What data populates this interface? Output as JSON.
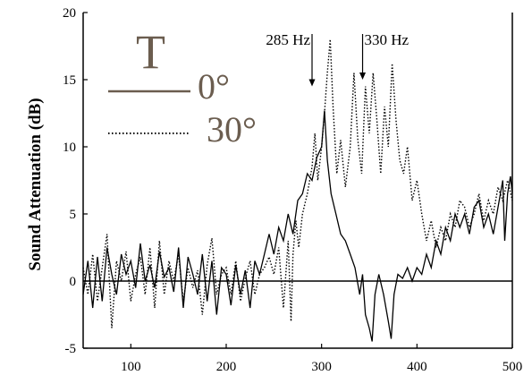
{
  "chart_data": {
    "type": "line",
    "title": "",
    "xlabel": "",
    "ylabel": "Sound Attenuation (dB)",
    "xlim": [
      50,
      500
    ],
    "ylim": [
      -5,
      20
    ],
    "x_ticks": [
      100,
      200,
      300,
      400,
      500
    ],
    "y_ticks": [
      -5,
      0,
      5,
      10,
      15,
      20
    ],
    "x_tick_labels": [
      "100",
      "200",
      "300",
      "400",
      "500"
    ],
    "y_tick_labels": [
      "-5",
      "0",
      "5",
      "10",
      "15",
      "20"
    ],
    "grid": false,
    "zero_line": true,
    "legend": {
      "title": "T",
      "placement": "top-left",
      "entries": [
        {
          "label": "0°",
          "style": "solid",
          "color": "#6b5d4f"
        },
        {
          "label": "30°",
          "style": "dotted",
          "color": "#000000"
        }
      ]
    },
    "annotations": [
      {
        "text": "285 Hz",
        "x": 290,
        "arrow_to_y": 14.5
      },
      {
        "text": "330 Hz",
        "x": 343,
        "arrow_to_y": 15.0
      }
    ],
    "series": [
      {
        "name": "0°",
        "style": "solid",
        "color": "#000000",
        "points": [
          [
            50,
            -1
          ],
          [
            55,
            1.5
          ],
          [
            60,
            -2
          ],
          [
            65,
            1.8
          ],
          [
            70,
            -1.5
          ],
          [
            75,
            2.5
          ],
          [
            80,
            0.5
          ],
          [
            85,
            -1
          ],
          [
            90,
            2
          ],
          [
            95,
            0.5
          ],
          [
            100,
            1.5
          ],
          [
            105,
            -0.5
          ],
          [
            110,
            2.8
          ],
          [
            115,
            0
          ],
          [
            120,
            1.2
          ],
          [
            125,
            -0.5
          ],
          [
            130,
            2.2
          ],
          [
            135,
            0.3
          ],
          [
            140,
            1
          ],
          [
            145,
            -0.8
          ],
          [
            150,
            2.5
          ],
          [
            155,
            -2
          ],
          [
            160,
            1.8
          ],
          [
            165,
            0.5
          ],
          [
            170,
            -1
          ],
          [
            175,
            2
          ],
          [
            180,
            -1.5
          ],
          [
            185,
            1.5
          ],
          [
            190,
            -2.5
          ],
          [
            195,
            1
          ],
          [
            200,
            0.5
          ],
          [
            205,
            -1.8
          ],
          [
            210,
            1.2
          ],
          [
            215,
            -1
          ],
          [
            220,
            0.8
          ],
          [
            225,
            -2
          ],
          [
            230,
            1.5
          ],
          [
            235,
            0.5
          ],
          [
            240,
            2
          ],
          [
            245,
            3.5
          ],
          [
            250,
            2
          ],
          [
            255,
            4
          ],
          [
            260,
            3
          ],
          [
            265,
            5
          ],
          [
            270,
            3.5
          ],
          [
            275,
            6
          ],
          [
            280,
            6.5
          ],
          [
            285,
            8
          ],
          [
            290,
            7.5
          ],
          [
            295,
            9.2
          ],
          [
            300,
            10
          ],
          [
            303,
            12.7
          ],
          [
            306,
            9
          ],
          [
            310,
            6.5
          ],
          [
            315,
            5
          ],
          [
            320,
            3.5
          ],
          [
            325,
            3
          ],
          [
            330,
            2
          ],
          [
            335,
            1
          ],
          [
            340,
            -1
          ],
          [
            343,
            0.5
          ],
          [
            346,
            -2.5
          ],
          [
            350,
            -3.5
          ],
          [
            353,
            -4.5
          ],
          [
            356,
            -1
          ],
          [
            360,
            0.5
          ],
          [
            365,
            -1
          ],
          [
            370,
            -3
          ],
          [
            373,
            -4.3
          ],
          [
            376,
            -1
          ],
          [
            380,
            0.5
          ],
          [
            385,
            0.2
          ],
          [
            390,
            1
          ],
          [
            395,
            0
          ],
          [
            400,
            1
          ],
          [
            405,
            0.5
          ],
          [
            410,
            2
          ],
          [
            415,
            1
          ],
          [
            420,
            3
          ],
          [
            425,
            2
          ],
          [
            430,
            4
          ],
          [
            435,
            3
          ],
          [
            440,
            5
          ],
          [
            445,
            4
          ],
          [
            450,
            5
          ],
          [
            455,
            3.5
          ],
          [
            460,
            5.5
          ],
          [
            465,
            6
          ],
          [
            470,
            4
          ],
          [
            475,
            5
          ],
          [
            480,
            3.5
          ],
          [
            485,
            5.5
          ],
          [
            490,
            7.5
          ],
          [
            492,
            3
          ],
          [
            495,
            6.5
          ],
          [
            498,
            7.8
          ],
          [
            500,
            6.5
          ]
        ]
      },
      {
        "name": "30°",
        "style": "dotted",
        "color": "#000000",
        "points": [
          [
            50,
            1
          ],
          [
            55,
            -1
          ],
          [
            60,
            2
          ],
          [
            65,
            -1.5
          ],
          [
            70,
            1
          ],
          [
            75,
            3.5
          ],
          [
            80,
            -3.5
          ],
          [
            85,
            1.5
          ],
          [
            90,
            0
          ],
          [
            95,
            2.2
          ],
          [
            100,
            -1.5
          ],
          [
            105,
            0.5
          ],
          [
            110,
            1.8
          ],
          [
            115,
            -1
          ],
          [
            120,
            2.5
          ],
          [
            125,
            -2
          ],
          [
            130,
            3
          ],
          [
            135,
            -1
          ],
          [
            140,
            1.5
          ],
          [
            145,
            0
          ],
          [
            150,
            2
          ],
          [
            155,
            -1.5
          ],
          [
            160,
            1
          ],
          [
            165,
            -0.5
          ],
          [
            170,
            0.8
          ],
          [
            175,
            -2.5
          ],
          [
            180,
            1.2
          ],
          [
            185,
            3.2
          ],
          [
            190,
            -1
          ],
          [
            195,
            0.5
          ],
          [
            200,
            1
          ],
          [
            205,
            -1
          ],
          [
            210,
            1.5
          ],
          [
            215,
            -1.5
          ],
          [
            220,
            0.2
          ],
          [
            225,
            1.5
          ],
          [
            230,
            -1
          ],
          [
            235,
            0.5
          ],
          [
            240,
            1
          ],
          [
            245,
            1.8
          ],
          [
            250,
            0.5
          ],
          [
            255,
            2.5
          ],
          [
            260,
            -2
          ],
          [
            265,
            3
          ],
          [
            268,
            -3
          ],
          [
            270,
            2
          ],
          [
            273,
            4.5
          ],
          [
            276,
            2.5
          ],
          [
            280,
            5
          ],
          [
            285,
            6.5
          ],
          [
            290,
            8.5
          ],
          [
            293,
            11
          ],
          [
            296,
            7.5
          ],
          [
            300,
            10
          ],
          [
            303,
            12.5
          ],
          [
            306,
            15.5
          ],
          [
            309,
            18
          ],
          [
            312,
            13
          ],
          [
            316,
            8
          ],
          [
            320,
            10.5
          ],
          [
            325,
            7
          ],
          [
            330,
            10
          ],
          [
            334,
            15.5
          ],
          [
            338,
            10.5
          ],
          [
            342,
            8
          ],
          [
            346,
            14.5
          ],
          [
            350,
            11
          ],
          [
            354,
            15.5
          ],
          [
            358,
            12
          ],
          [
            362,
            8
          ],
          [
            366,
            13
          ],
          [
            370,
            10
          ],
          [
            374,
            16.2
          ],
          [
            378,
            12
          ],
          [
            382,
            9
          ],
          [
            386,
            8
          ],
          [
            390,
            10
          ],
          [
            395,
            6
          ],
          [
            400,
            7.5
          ],
          [
            405,
            5
          ],
          [
            410,
            3
          ],
          [
            415,
            4.5
          ],
          [
            420,
            2.5
          ],
          [
            425,
            4
          ],
          [
            430,
            3
          ],
          [
            435,
            5
          ],
          [
            440,
            4
          ],
          [
            445,
            6
          ],
          [
            450,
            5.5
          ],
          [
            455,
            4
          ],
          [
            460,
            5
          ],
          [
            465,
            6.5
          ],
          [
            470,
            4.5
          ],
          [
            475,
            6
          ],
          [
            480,
            5
          ],
          [
            485,
            7
          ],
          [
            490,
            6
          ],
          [
            495,
            7.5
          ],
          [
            500,
            6
          ]
        ]
      }
    ]
  }
}
